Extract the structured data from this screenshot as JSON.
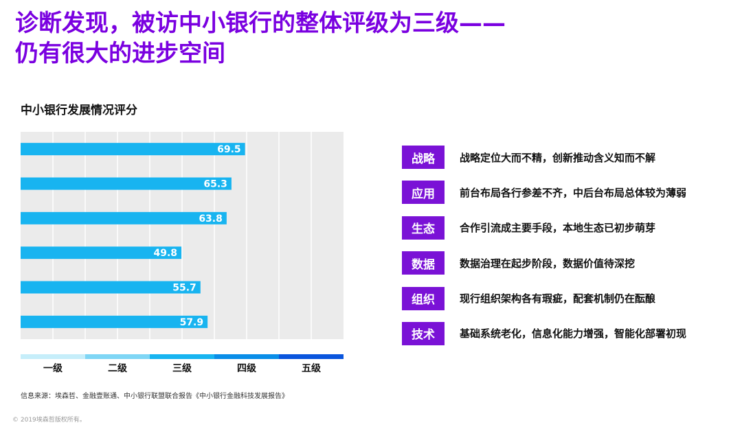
{
  "page": {
    "title_line1": "诊断发现，被访中小银行的整体评级为三级——",
    "title_line2": "仍有很大的进步空间",
    "source": "信息来源：埃森哲、金融壹账通、中小银行联盟联合报告《中小银行金融科技发展报告》",
    "copyright": "© 2019埃森哲版权所有。"
  },
  "chart_data": {
    "type": "bar",
    "orientation": "horizontal",
    "title": "中小银行发展情况评分",
    "categories": [
      "战略",
      "应用",
      "生态",
      "数据",
      "组织",
      "技术"
    ],
    "values": [
      69.5,
      65.3,
      63.8,
      49.8,
      55.7,
      57.9
    ],
    "value_labels": [
      "69.5",
      "65.3",
      "63.8",
      "49.8",
      "55.7",
      "57.9"
    ],
    "xlim": [
      0,
      100
    ],
    "grid": true,
    "scale": {
      "levels": [
        "一级",
        "二级",
        "三级",
        "四级",
        "五级"
      ],
      "colors": [
        "#c6eefa",
        "#7fd6f5",
        "#18b4f0",
        "#0a8ee8",
        "#0a55dd"
      ]
    },
    "colors": {
      "bar": "#18b4f0",
      "plot_bg": "#ebebeb",
      "grid": "#ffffff"
    }
  },
  "findings": [
    {
      "tag": "战略",
      "text": "战略定位大而不精，创新推动含义知而不解"
    },
    {
      "tag": "应用",
      "text": "前台布局各行参差不齐，中后台布局总体较为薄弱"
    },
    {
      "tag": "生态",
      "text": "合作引流成主要手段，本地生态已初步萌芽"
    },
    {
      "tag": "数据",
      "text": "数据治理在起步阶段，数据价值待深挖"
    },
    {
      "tag": "组织",
      "text": "现行组织架构各有瑕疵，配套机制仍在酝酿"
    },
    {
      "tag": "技术",
      "text": "基础系统老化，信息化能力增强，智能化部署初现"
    }
  ],
  "colors": {
    "title": "#7a00e0",
    "tag_bg": "#7a12d6"
  }
}
